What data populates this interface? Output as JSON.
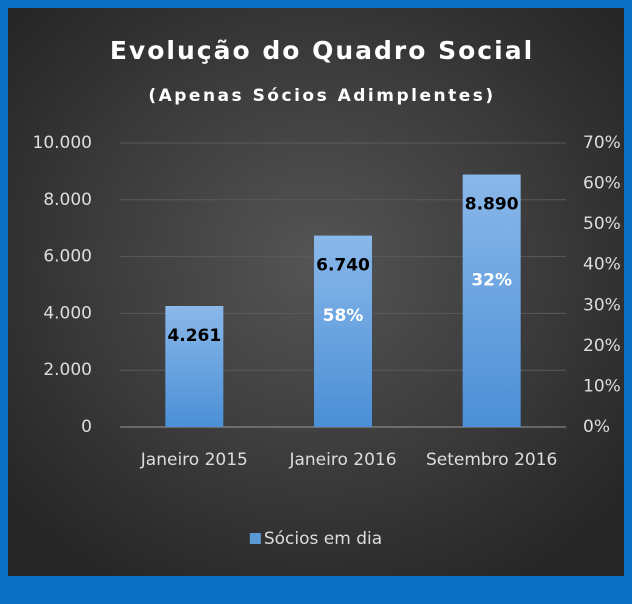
{
  "chart_data": {
    "type": "bar",
    "title": "Evolução do Quadro Social",
    "subtitle": "(Apenas Sócios Adimplentes)",
    "categories": [
      "Janeiro 2015",
      "Janeiro 2016",
      "Setembro 2016"
    ],
    "series": [
      {
        "name": "Sócios em dia",
        "color": "#5b9bd5",
        "values": [
          4261,
          6740,
          8890
        ],
        "value_labels": [
          "4.261",
          "6.740",
          "8.890"
        ]
      }
    ],
    "growth": {
      "values": [
        null,
        58,
        32
      ],
      "value_labels": [
        null,
        "58%",
        "32%"
      ]
    },
    "ylim": [
      0,
      10000
    ],
    "yticks": [
      0,
      {
        "value": 2000,
        "label": "2.000"
      },
      {
        "value": 4000,
        "label": "4.000"
      },
      {
        "value": 6000,
        "label": "6.000"
      },
      {
        "value": 8000,
        "label": "8.000"
      },
      {
        "value": 10000,
        "label": "10.000"
      }
    ],
    "y2lim": [
      0,
      70
    ],
    "y2ticks": [
      {
        "value": 0,
        "label": "0%"
      },
      {
        "value": 10,
        "label": "10%"
      },
      {
        "value": 20,
        "label": "20%"
      },
      {
        "value": 30,
        "label": "30%"
      },
      {
        "value": 40,
        "label": "40%"
      },
      {
        "value": 50,
        "label": "50%"
      },
      {
        "value": 60,
        "label": "60%"
      },
      {
        "value": 70,
        "label": "70%"
      }
    ],
    "grid": true,
    "legend": "bottom"
  }
}
